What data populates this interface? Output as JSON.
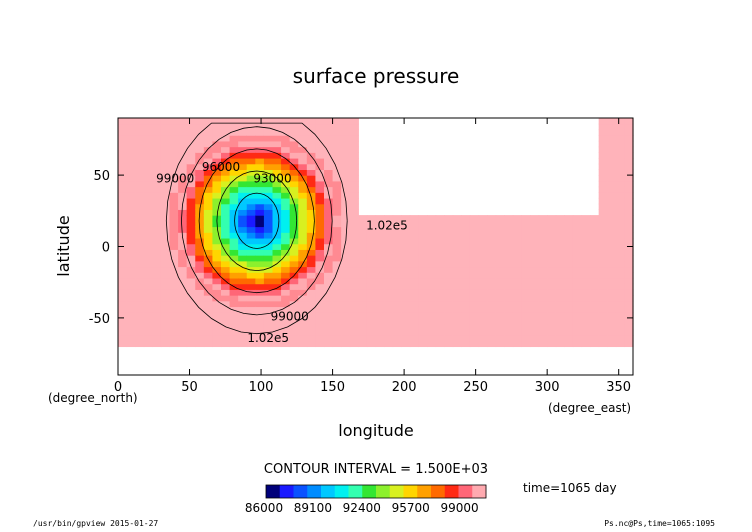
{
  "chart_data": {
    "type": "heatmap",
    "title": "surface pressure",
    "xlabel": "longitude",
    "ylabel": "latitude",
    "x_unit": "(degree_east)",
    "y_unit": "(degree_north)",
    "xlim": [
      0,
      360
    ],
    "ylim": [
      -90,
      90
    ],
    "x_ticks": [
      0,
      50,
      100,
      150,
      200,
      250,
      300,
      350
    ],
    "y_ticks": [
      50,
      0,
      -50
    ],
    "contour_interval_text": "CONTOUR INTERVAL = 1.500E+03",
    "time_label": "time=1065 day",
    "colorbar": {
      "min": 86000,
      "max": 100500,
      "tick_labels": [
        "86000",
        "89100",
        "92400",
        "95700",
        "99000"
      ],
      "colors": [
        "#00007a",
        "#1a1aff",
        "#0a52ff",
        "#008cff",
        "#00c8ff",
        "#00f0f0",
        "#33ffb0",
        "#33e633",
        "#8cf02d",
        "#d8f020",
        "#ffd500",
        "#ffa000",
        "#ff6a00",
        "#ff2a14",
        "#ff6677",
        "#ffaab0"
      ]
    },
    "contour_labels": [
      {
        "text": "99000",
        "lon": 40,
        "lat": 45
      },
      {
        "text": "96000",
        "lon": 72,
        "lat": 53
      },
      {
        "text": "93000",
        "lon": 108,
        "lat": 45
      },
      {
        "text": "1.02e5",
        "lon": 188,
        "lat": 12
      },
      {
        "text": "99000",
        "lon": 120,
        "lat": -52
      },
      {
        "text": "1.02e5",
        "lon": 105,
        "lat": -67
      }
    ],
    "field_center": {
      "lon": 97,
      "lat": 18
    },
    "minimum_value": 86000,
    "grid": false,
    "legend": "bottom-center colorbar"
  },
  "footer": {
    "left": "/usr/bin/gpview  2015-01-27",
    "right": "Ps.nc@Ps,time=1065:1095"
  }
}
